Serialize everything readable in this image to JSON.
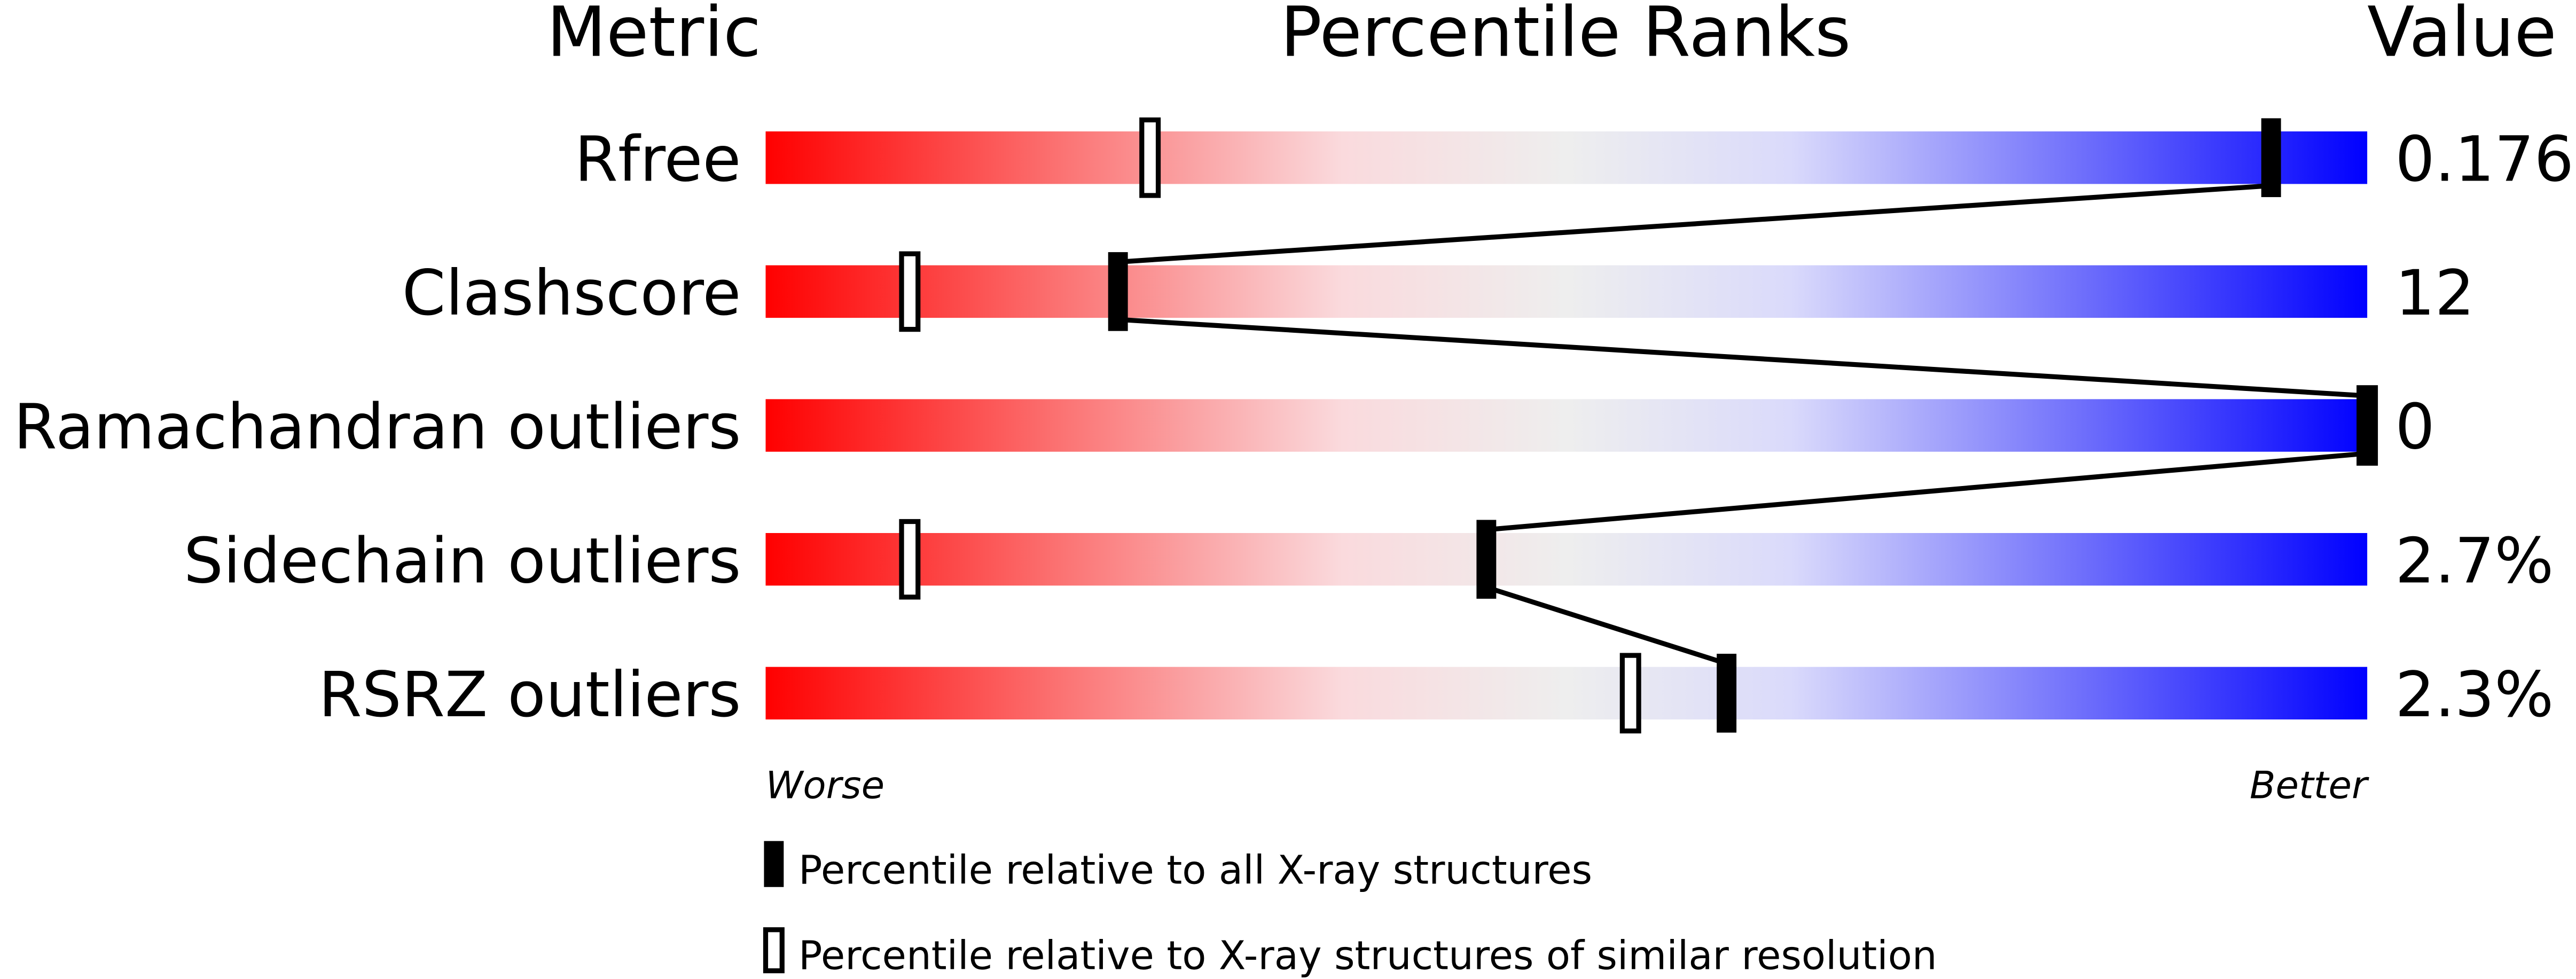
{
  "chart_data": {
    "type": "percentile-slider",
    "headers": {
      "metric": "Metric",
      "ranks": "Percentile Ranks",
      "value": "Value"
    },
    "xlim": [
      0,
      100
    ],
    "axis_labels": {
      "left": "Worse",
      "right": "Better"
    },
    "rows": [
      {
        "metric": "Rfree",
        "value": "0.176",
        "percentile_all": 94,
        "percentile_similar": 24
      },
      {
        "metric": "Clashscore",
        "value": "12",
        "percentile_all": 22,
        "percentile_similar": 9
      },
      {
        "metric": "Ramachandran outliers",
        "value": "0",
        "percentile_all": 100,
        "percentile_similar": 100
      },
      {
        "metric": "Sidechain outliers",
        "value": "2.7%",
        "percentile_all": 45,
        "percentile_similar": 9
      },
      {
        "metric": "RSRZ outliers",
        "value": "2.3%",
        "percentile_all": 60,
        "percentile_similar": 54
      }
    ],
    "legend": [
      {
        "marker": "filled",
        "label": "Percentile relative to all X-ray structures"
      },
      {
        "marker": "open",
        "label": "Percentile relative to X-ray structures of similar resolution"
      }
    ],
    "colors": {
      "worse": "#ff0000",
      "mid": "#eeeeee",
      "better": "#0000ff",
      "marker": "#000000"
    }
  }
}
